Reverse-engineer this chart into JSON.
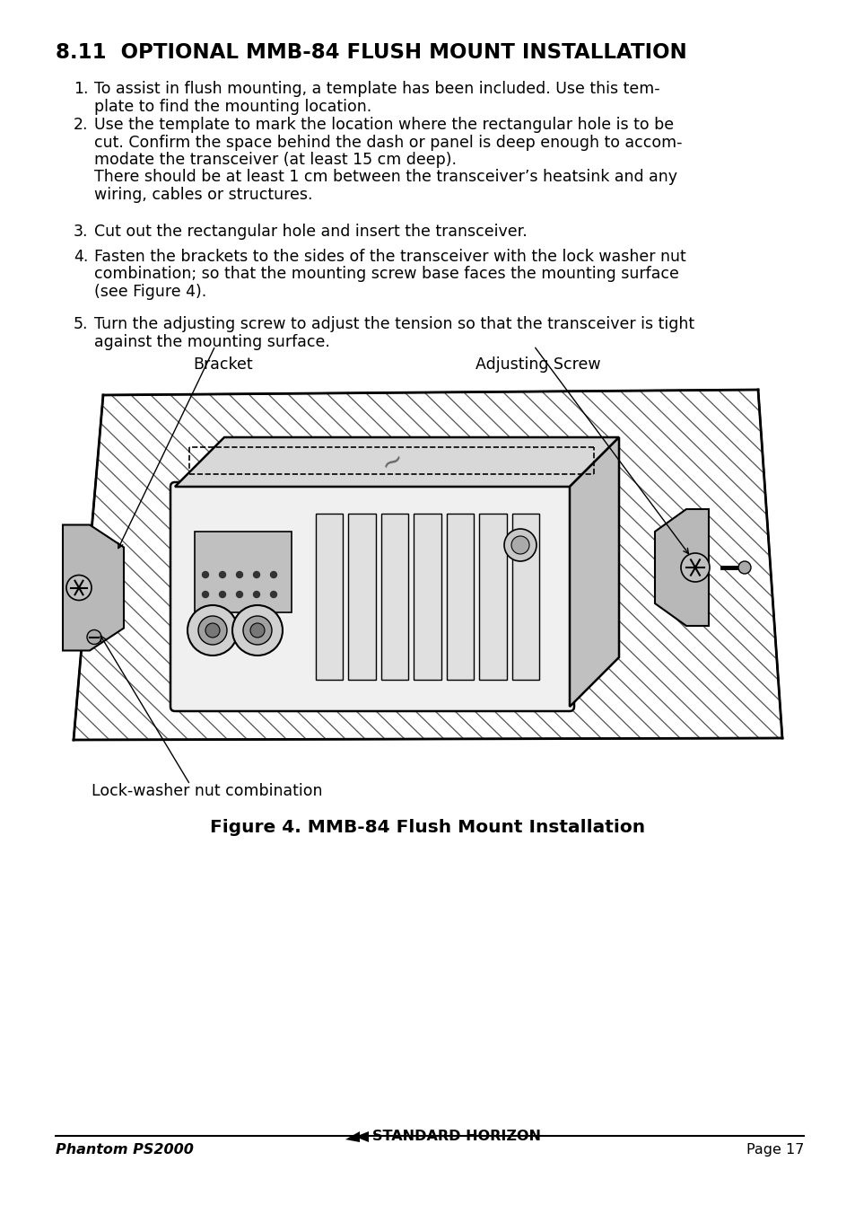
{
  "title": "8.11  OPTIONAL MMB-84 FLUSH MOUNT INSTALLATION",
  "item1_num": "1.",
  "item1_line1": "To assist in flush mounting, a template has been included. Use this tem-",
  "item1_line2": "plate to find the mounting location.",
  "item2_num": "2.",
  "item2_line1": "Use the template to mark the location where the rectangular hole is to be",
  "item2_line2": "cut. Confirm the space behind the dash or panel is deep enough to accom-",
  "item2_line3": "modate the transceiver (at least 15 cm deep).",
  "item2_line4": "There should be at least 1 cm between the transceiver’s heatsink and any",
  "item2_line5": "wiring, cables or structures.",
  "item3_num": "3.",
  "item3_line1": "Cut out the rectangular hole and insert the transceiver.",
  "item4_num": "4.",
  "item4_line1": "Fasten the brackets to the sides of the transceiver with the lock washer nut",
  "item4_line2": "combination; so that the mounting screw base faces the mounting surface",
  "item4_line3": "(see Figure 4).",
  "item5_num": "5.",
  "item5_line1": "Turn the adjusting screw to adjust the tension so that the transceiver is tight",
  "item5_line2": "against the mounting surface.",
  "label_bracket": "Bracket",
  "label_adj_screw": "Adjusting Screw",
  "label_lock": "Lock-washer nut combination",
  "figure_caption": "Figure 4. MMB-84 Flush Mount Installation",
  "footer_left": "Phantom PS2000",
  "footer_right": "Page 17",
  "bg_color": "#ffffff",
  "text_color": "#000000"
}
